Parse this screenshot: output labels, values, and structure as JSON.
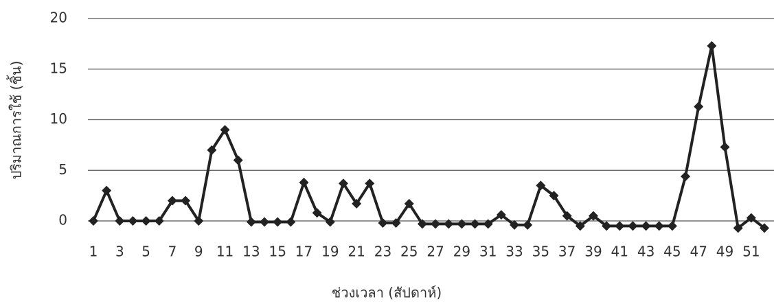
{
  "chart_data": {
    "type": "line",
    "x_label": "ช่วงเวลา (สัปดาห์)",
    "y_label": "ปริมาณการใช้ (ชิ้น)",
    "categories": [
      "1",
      null,
      "3",
      null,
      "5",
      null,
      "7",
      null,
      "9",
      null,
      "11",
      null,
      "13",
      null,
      "15",
      null,
      "17",
      null,
      "19",
      null,
      "21",
      null,
      "23",
      null,
      "25",
      null,
      "27",
      null,
      "29",
      null,
      "31",
      null,
      "33",
      null,
      "35",
      null,
      "37",
      null,
      "39",
      null,
      "41",
      null,
      "43",
      null,
      "45",
      null,
      "47",
      null,
      "49",
      null,
      "51",
      null
    ],
    "series": [
      {
        "color": "#222222",
        "values": [
          0,
          3,
          0,
          0,
          0,
          0,
          2,
          2,
          0,
          7,
          9,
          6,
          -0.1,
          -0.1,
          -0.1,
          -0.1,
          3.8,
          0.8,
          -0.1,
          3.7,
          1.7,
          3.7,
          -0.2,
          -0.2,
          1.7,
          -0.3,
          -0.3,
          -0.3,
          -0.3,
          -0.3,
          -0.3,
          0.6,
          -0.4,
          -0.4,
          3.5,
          2.5,
          0.5,
          -0.5,
          0.5,
          -0.5,
          -0.5,
          -0.5,
          -0.5,
          -0.5,
          -0.5,
          4.4,
          11.3,
          17.3,
          7.3,
          -0.7,
          0.3,
          -0.7
        ]
      }
    ],
    "ylim": [
      0,
      20
    ],
    "yticks": [
      0,
      5,
      10,
      15,
      20
    ],
    "grid": true
  }
}
